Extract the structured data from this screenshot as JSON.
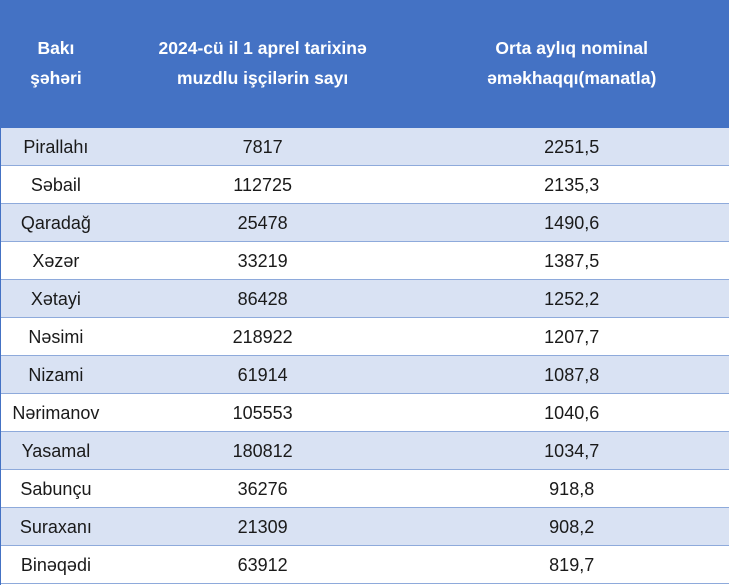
{
  "table": {
    "headers": {
      "district_line1": "Bakı",
      "district_line2": "şəhəri",
      "workers_line1": "2024-cü il 1 aprel tarixinə",
      "workers_line2": "muzdlu işçilərin sayı",
      "salary_line1": "Orta aylıq nominal",
      "salary_line2": "əməkhaqqı(manatla)"
    },
    "rows": [
      {
        "district": "Pirallahı",
        "workers": "7817",
        "salary": "2251,5"
      },
      {
        "district": "Səbail",
        "workers": "112725",
        "salary": "2135,3"
      },
      {
        "district": "Qaradağ",
        "workers": "25478",
        "salary": "1490,6"
      },
      {
        "district": "Xəzər",
        "workers": "33219",
        "salary": "1387,5"
      },
      {
        "district": "Xətayi",
        "workers": "86428",
        "salary": "1252,2"
      },
      {
        "district": "Nəsimi",
        "workers": "218922",
        "salary": "1207,7"
      },
      {
        "district": "Nizami",
        "workers": "61914",
        "salary": "1087,8"
      },
      {
        "district": "Nərimanov",
        "workers": "105553",
        "salary": "1040,6"
      },
      {
        "district": "Yasamal",
        "workers": "180812",
        "salary": "1034,7"
      },
      {
        "district": "Sabunçu",
        "workers": "36276",
        "salary": "918,8"
      },
      {
        "district": "Suraxanı",
        "workers": "21309",
        "salary": "908,2"
      },
      {
        "district": "Binəqədi",
        "workers": "63912",
        "salary": "819,7"
      }
    ]
  },
  "colors": {
    "header_bg": "#4472c4",
    "header_text": "#ffffff",
    "band": "#d9e2f3",
    "row_border": "#8eaadb"
  }
}
